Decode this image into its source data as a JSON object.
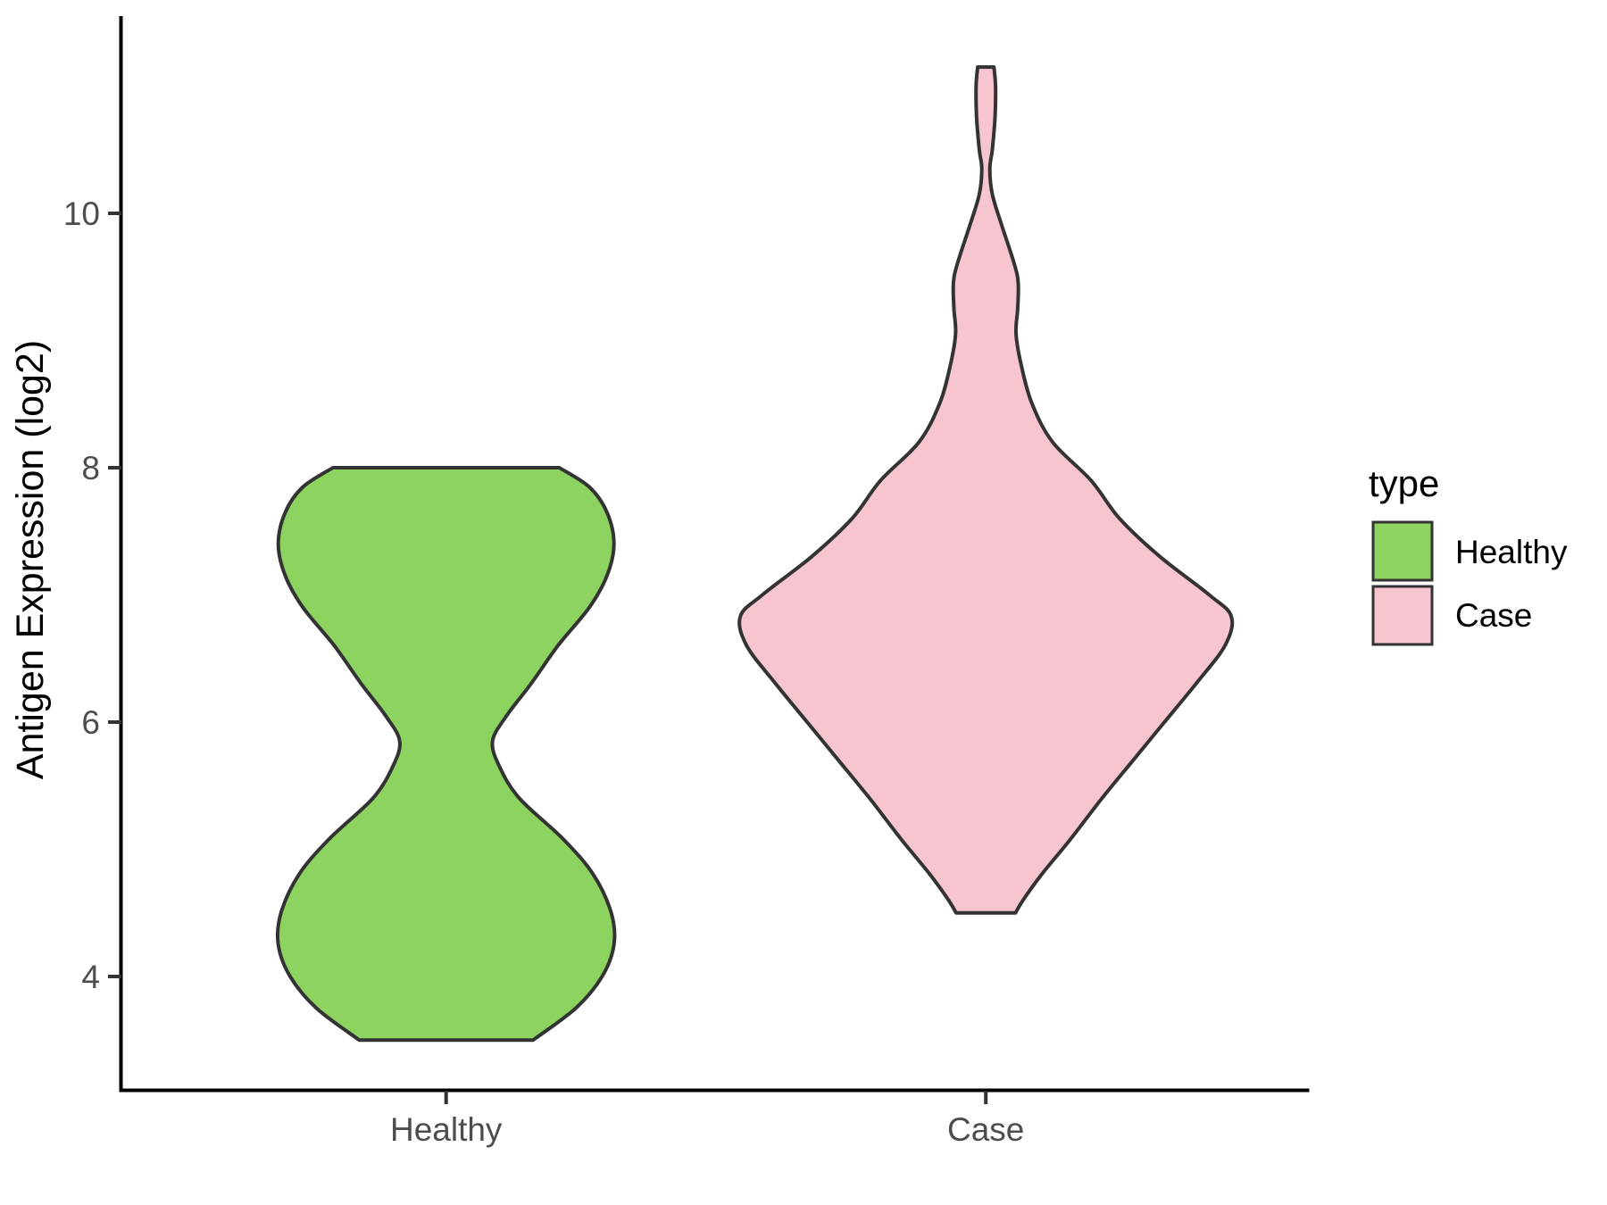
{
  "chart_data": {
    "type": "violin",
    "title": "",
    "xlabel": "",
    "ylabel": "Antigen Expression (log2)",
    "categories": [
      "Healthy",
      "Case"
    ],
    "y_axis": {
      "ticks": [
        10,
        8,
        6,
        4
      ],
      "range_shown": [
        3.1,
        11.5
      ]
    },
    "grid": "off",
    "series": [
      {
        "name": "Healthy",
        "fill": "#8DD35F",
        "outline": "#333333",
        "y_range": [
          3.5,
          8.0
        ],
        "profile": [
          {
            "v": 8.0,
            "w": 0.21
          },
          {
            "v": 7.85,
            "w": 0.265
          },
          {
            "v": 7.65,
            "w": 0.298
          },
          {
            "v": 7.4,
            "w": 0.311
          },
          {
            "v": 7.15,
            "w": 0.298
          },
          {
            "v": 6.9,
            "w": 0.265
          },
          {
            "v": 6.6,
            "w": 0.207
          },
          {
            "v": 6.3,
            "w": 0.157
          },
          {
            "v": 6.05,
            "w": 0.112
          },
          {
            "v": 5.85,
            "w": 0.086
          },
          {
            "v": 5.65,
            "w": 0.099
          },
          {
            "v": 5.4,
            "w": 0.136
          },
          {
            "v": 5.08,
            "w": 0.217
          },
          {
            "v": 4.8,
            "w": 0.273
          },
          {
            "v": 4.5,
            "w": 0.306
          },
          {
            "v": 4.25,
            "w": 0.311
          },
          {
            "v": 4.0,
            "w": 0.289
          },
          {
            "v": 3.75,
            "w": 0.24
          },
          {
            "v": 3.5,
            "w": 0.161
          }
        ]
      },
      {
        "name": "Case",
        "fill": "#F7C5D0",
        "outline": "#333333",
        "y_range": [
          4.5,
          11.15
        ],
        "profile": [
          {
            "v": 11.15,
            "w": 0.015
          },
          {
            "v": 11.0,
            "w": 0.018
          },
          {
            "v": 10.75,
            "w": 0.017
          },
          {
            "v": 10.5,
            "w": 0.012
          },
          {
            "v": 10.35,
            "w": 0.0074
          },
          {
            "v": 10.15,
            "w": 0.012
          },
          {
            "v": 9.9,
            "w": 0.03
          },
          {
            "v": 9.6,
            "w": 0.053
          },
          {
            "v": 9.45,
            "w": 0.06
          },
          {
            "v": 9.25,
            "w": 0.059
          },
          {
            "v": 9.05,
            "w": 0.056
          },
          {
            "v": 8.8,
            "w": 0.066
          },
          {
            "v": 8.5,
            "w": 0.086
          },
          {
            "v": 8.2,
            "w": 0.124
          },
          {
            "v": 7.9,
            "w": 0.195
          },
          {
            "v": 7.6,
            "w": 0.248
          },
          {
            "v": 7.3,
            "w": 0.323
          },
          {
            "v": 7.0,
            "w": 0.414
          },
          {
            "v": 6.83,
            "w": 0.455
          },
          {
            "v": 6.6,
            "w": 0.443
          },
          {
            "v": 6.3,
            "w": 0.389
          },
          {
            "v": 6.0,
            "w": 0.331
          },
          {
            "v": 5.7,
            "w": 0.273
          },
          {
            "v": 5.4,
            "w": 0.215
          },
          {
            "v": 5.08,
            "w": 0.157
          },
          {
            "v": 4.8,
            "w": 0.103
          },
          {
            "v": 4.6,
            "w": 0.069
          },
          {
            "v": 4.5,
            "w": 0.055
          }
        ]
      }
    ],
    "legend": {
      "title": "type",
      "position": "right",
      "items": [
        {
          "label": "Healthy",
          "color": "#8DD35F"
        },
        {
          "label": "Case",
          "color": "#F7C5D0"
        }
      ]
    }
  },
  "colors": {
    "axis_line": "#000000",
    "tick_mark": "#333333",
    "tick_label": "#4D4D4D",
    "text": "#000000",
    "background": "#FFFFFF"
  }
}
